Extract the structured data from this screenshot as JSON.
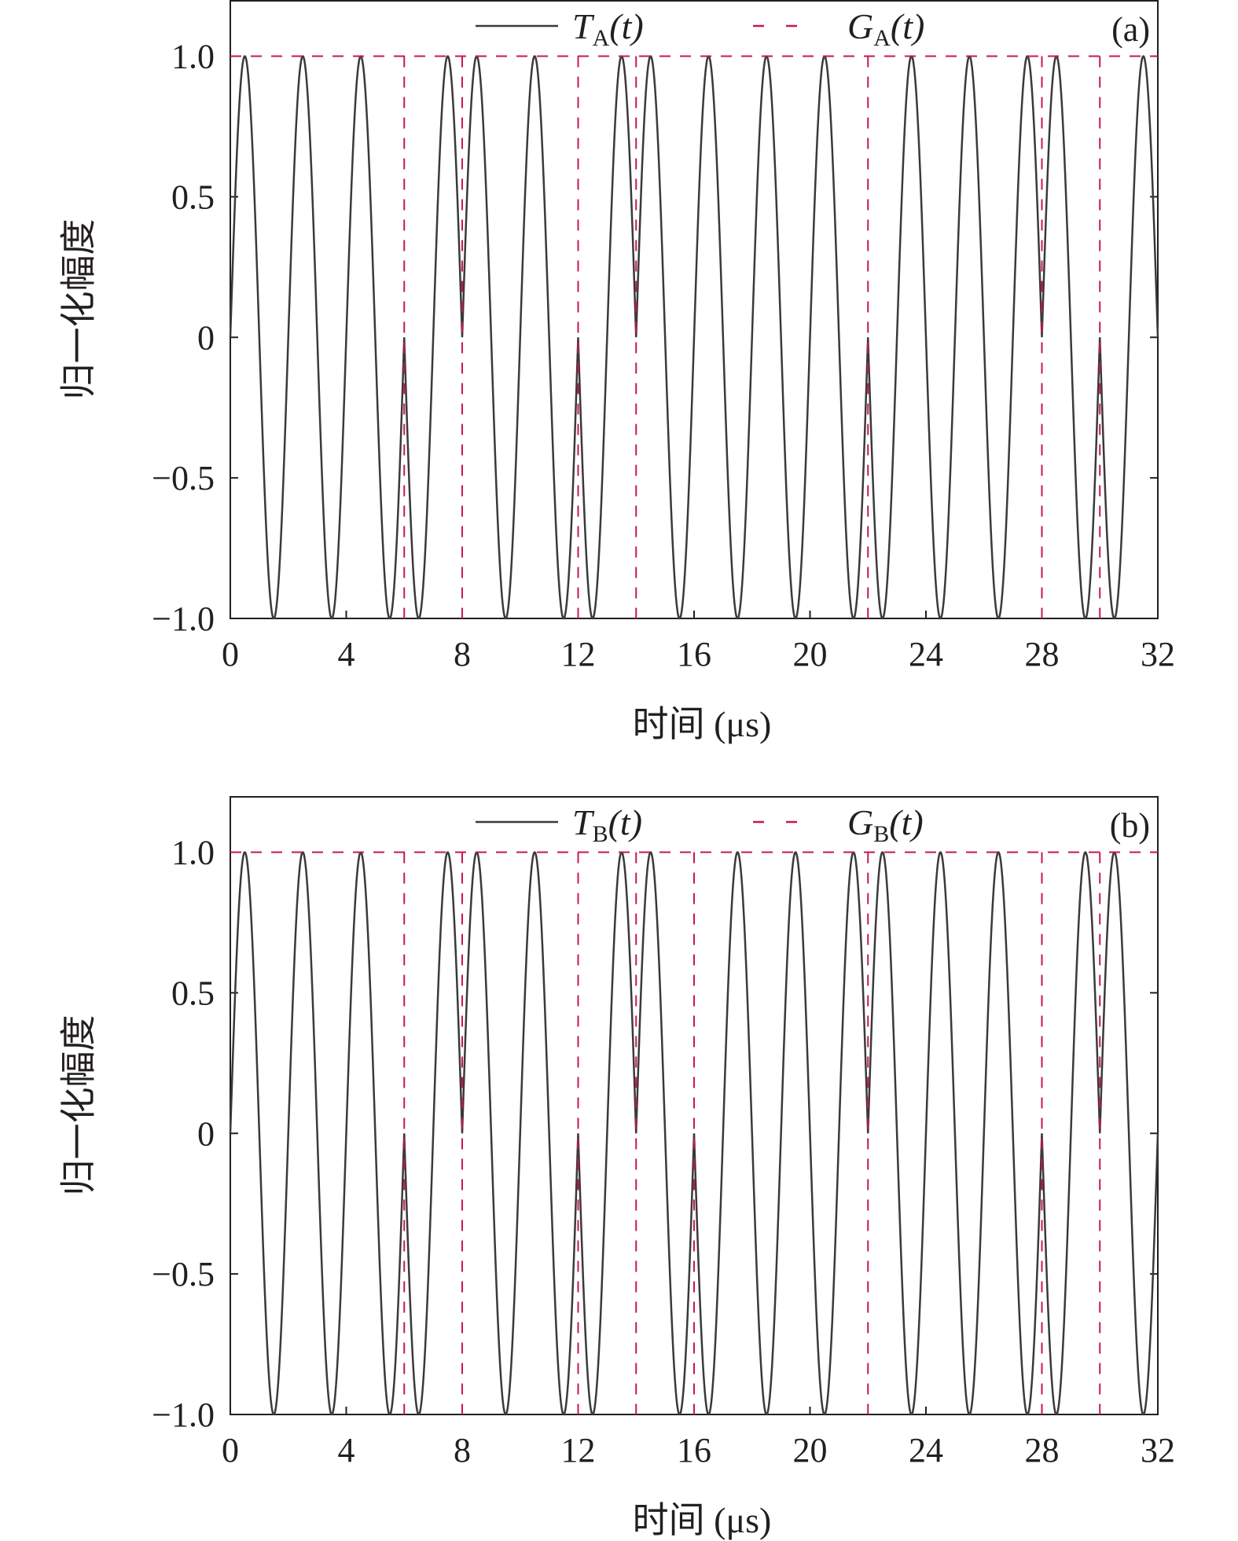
{
  "chart_data": [
    {
      "type": "line",
      "panel_label": "(a)",
      "xlabel": "时间 (μs)",
      "ylabel": "归一化幅度",
      "xlim": [
        0,
        32
      ],
      "ylim": [
        -1.0,
        1.2
      ],
      "xticks": [
        0,
        4,
        8,
        12,
        16,
        20,
        24,
        28,
        32
      ],
      "xtick_labels": [
        "0",
        "4",
        "8",
        "12",
        "16",
        "20",
        "24",
        "28",
        "32"
      ],
      "yticks": [
        -1.0,
        -0.5,
        0,
        0.5,
        1.0
      ],
      "ytick_labels": [
        "−1.0",
        "−0.5",
        "0",
        "0.5",
        "1.0"
      ],
      "legend_position": "top",
      "series": [
        {
          "name": "T_A(t)",
          "legend_main": "T",
          "legend_sub": "A",
          "legend_suffix": "(t)",
          "style": "solid",
          "color": "#3a3a3a",
          "formula": "phase-coded sinusoid, amplitude 1, carrier period 2 μs, phase reversals at the switch times",
          "period_us": 2,
          "phase_switch_times_us": [
            6,
            8,
            12,
            14,
            22,
            28,
            30
          ]
        },
        {
          "name": "G_A(t)",
          "legend_main": "G",
          "legend_sub": "A",
          "legend_suffix": "(t)",
          "style": "dashed",
          "color": "#c8184a",
          "level": 1.0,
          "impulse_times_us": [
            6,
            8,
            12,
            14,
            22,
            28,
            30
          ]
        }
      ]
    },
    {
      "type": "line",
      "panel_label": "(b)",
      "xlabel": "时间 (μs)",
      "ylabel": "归一化幅度",
      "xlim": [
        0,
        32
      ],
      "ylim": [
        -1.0,
        1.2
      ],
      "xticks": [
        0,
        4,
        8,
        12,
        16,
        20,
        24,
        28,
        32
      ],
      "xtick_labels": [
        "0",
        "4",
        "8",
        "12",
        "16",
        "20",
        "24",
        "28",
        "32"
      ],
      "yticks": [
        -1.0,
        -0.5,
        0,
        0.5,
        1.0
      ],
      "ytick_labels": [
        "−1.0",
        "−0.5",
        "0",
        "0.5",
        "1.0"
      ],
      "legend_position": "top",
      "series": [
        {
          "name": "T_B(t)",
          "legend_main": "T",
          "legend_sub": "B",
          "legend_suffix": "(t)",
          "style": "solid",
          "color": "#3a3a3a",
          "formula": "phase-coded sinusoid, amplitude 1, carrier period 2 μs, phase reversals at the switch times",
          "period_us": 2,
          "phase_switch_times_us": [
            6,
            8,
            12,
            14,
            16,
            22,
            28,
            30
          ]
        },
        {
          "name": "G_B(t)",
          "legend_main": "G",
          "legend_sub": "B",
          "legend_suffix": "(t)",
          "style": "dashed",
          "color": "#c8184a",
          "level": 1.0,
          "impulse_times_us": [
            6,
            8,
            12,
            14,
            16,
            22,
            28,
            30
          ]
        }
      ]
    }
  ]
}
